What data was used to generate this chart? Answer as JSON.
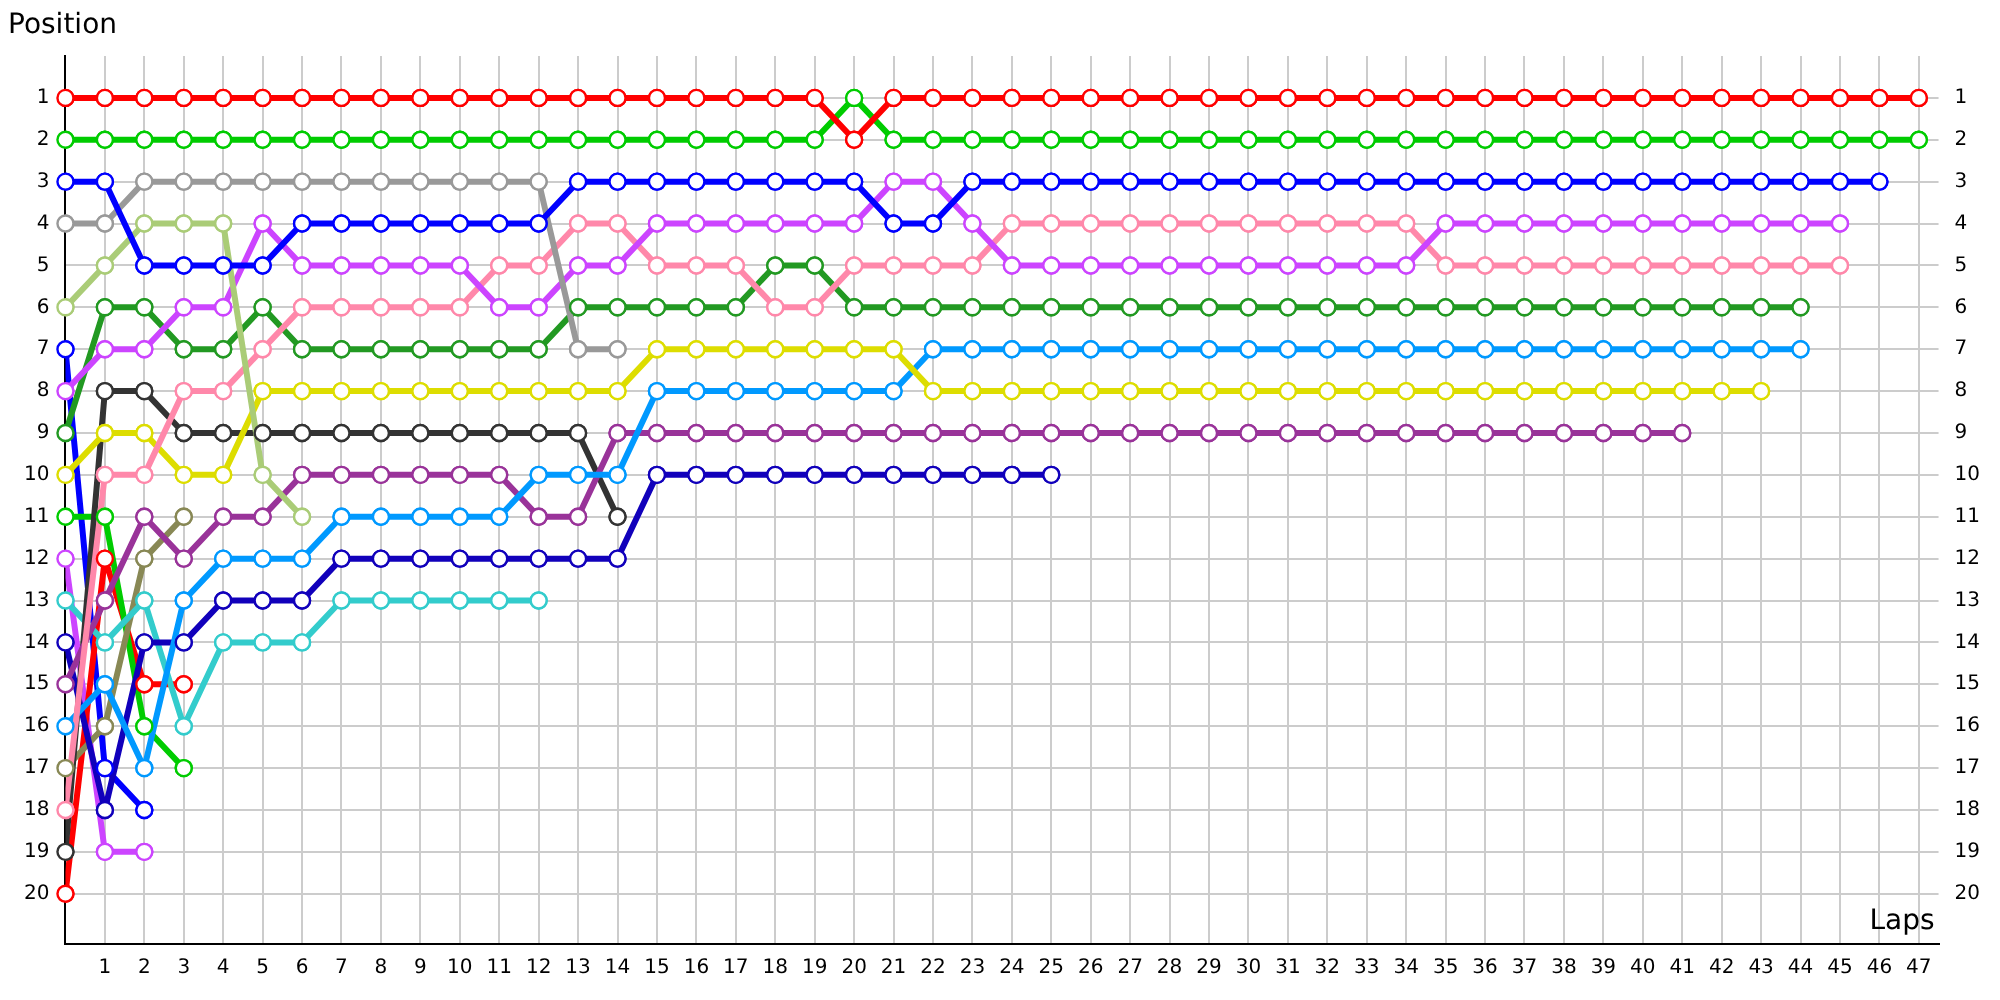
{
  "chart_data": {
    "type": "line",
    "xlabel": "Laps",
    "ylabel": "Position",
    "x": [
      0,
      1,
      2,
      3,
      4,
      5,
      6,
      7,
      8,
      9,
      10,
      11,
      12,
      13,
      14,
      15,
      16,
      17,
      18,
      19,
      20,
      21,
      22,
      23,
      24,
      25,
      26,
      27,
      28,
      29,
      30,
      31,
      32,
      33,
      34,
      35,
      36,
      37,
      38,
      39,
      40,
      41,
      42,
      43,
      44,
      45,
      46,
      47
    ],
    "xlim": [
      0,
      47.5
    ],
    "xticks": [
      1,
      2,
      3,
      4,
      5,
      6,
      7,
      8,
      9,
      10,
      11,
      12,
      13,
      14,
      15,
      16,
      17,
      18,
      19,
      20,
      21,
      22,
      23,
      24,
      25,
      26,
      27,
      28,
      29,
      30,
      31,
      32,
      33,
      34,
      35,
      36,
      37,
      38,
      39,
      40,
      41,
      42,
      43,
      44,
      45,
      46,
      47
    ],
    "ylim": [
      21.2,
      0
    ],
    "yticks": [
      1,
      2,
      3,
      4,
      5,
      6,
      7,
      8,
      9,
      10,
      11,
      12,
      13,
      14,
      15,
      16,
      17,
      18,
      19,
      20
    ],
    "y2lim": [
      21.2,
      0
    ],
    "y2ticks": [
      1,
      2,
      3,
      4,
      5,
      6,
      7,
      8,
      9,
      10,
      11,
      12,
      13,
      14,
      15,
      16,
      17,
      18,
      19,
      20
    ],
    "grid": true,
    "legend": false,
    "marker": "circle",
    "line_style": "solid",
    "series": [
      {
        "color": "#ff0000",
        "values": [
          1,
          1,
          1,
          1,
          1,
          1,
          1,
          1,
          1,
          1,
          1,
          1,
          1,
          1,
          1,
          1,
          1,
          1,
          1,
          1,
          2,
          1,
          1,
          1,
          1,
          1,
          1,
          1,
          1,
          1,
          1,
          1,
          1,
          1,
          1,
          1,
          1,
          1,
          1,
          1,
          1,
          1,
          1,
          1,
          1,
          1,
          1,
          1
        ]
      },
      {
        "color": "#00cc00",
        "values": [
          2,
          2,
          2,
          2,
          2,
          2,
          2,
          2,
          2,
          2,
          2,
          2,
          2,
          2,
          2,
          2,
          2,
          2,
          2,
          2,
          1,
          2,
          2,
          2,
          2,
          2,
          2,
          2,
          2,
          2,
          2,
          2,
          2,
          2,
          2,
          2,
          2,
          2,
          2,
          2,
          2,
          2,
          2,
          2,
          2,
          2,
          2,
          2
        ]
      },
      {
        "color": "#0000ff",
        "values": [
          3,
          3,
          5,
          5,
          5,
          5,
          4,
          4,
          4,
          4,
          4,
          4,
          4,
          3,
          3,
          3,
          3,
          3,
          3,
          3,
          3,
          4,
          4,
          3,
          3,
          3,
          3,
          3,
          3,
          3,
          3,
          3,
          3,
          3,
          3,
          3,
          3,
          3,
          3,
          3,
          3,
          3,
          3,
          3,
          3,
          3,
          3,
          null
        ]
      },
      {
        "color": "#999999",
        "values": [
          4,
          4,
          3,
          3,
          3,
          3,
          3,
          3,
          3,
          3,
          3,
          3,
          3,
          7,
          7,
          null,
          null,
          null,
          null,
          null,
          null,
          null,
          null,
          null,
          null,
          null,
          null,
          null,
          null,
          null,
          null,
          null,
          null,
          null,
          null,
          null,
          null,
          null,
          null,
          null,
          null,
          null,
          null,
          null,
          null,
          null,
          null,
          null
        ]
      },
      {
        "color": "#aacc77",
        "values": [
          6,
          5,
          4,
          4,
          4,
          10,
          11,
          null,
          null,
          null,
          null,
          null,
          null,
          null,
          null,
          null,
          null,
          null,
          null,
          null,
          null,
          null,
          null,
          null,
          null,
          null,
          null,
          null,
          null,
          null,
          null,
          null,
          null,
          null,
          null,
          null,
          null,
          null,
          null,
          null,
          null,
          null,
          null,
          null,
          null,
          null,
          null,
          null
        ]
      },
      {
        "color": "#cc44ff",
        "values": [
          8,
          7,
          7,
          6,
          6,
          4,
          5,
          5,
          5,
          5,
          5,
          6,
          6,
          5,
          5,
          4,
          4,
          4,
          4,
          4,
          4,
          3,
          3,
          4,
          5,
          5,
          5,
          5,
          5,
          5,
          5,
          5,
          5,
          5,
          5,
          4,
          4,
          4,
          4,
          4,
          4,
          4,
          4,
          4,
          4,
          4,
          null,
          null
        ]
      },
      {
        "color": "#ff88aa",
        "values": [
          18,
          10,
          10,
          8,
          8,
          7,
          6,
          6,
          6,
          6,
          6,
          5,
          5,
          4,
          4,
          5,
          5,
          5,
          6,
          6,
          5,
          5,
          5,
          5,
          4,
          4,
          4,
          4,
          4,
          4,
          4,
          4,
          4,
          4,
          4,
          5,
          5,
          5,
          5,
          5,
          5,
          5,
          5,
          5,
          5,
          5,
          null,
          null
        ]
      },
      {
        "color": "#229922",
        "values": [
          9,
          6,
          6,
          7,
          7,
          6,
          7,
          7,
          7,
          7,
          7,
          7,
          7,
          6,
          6,
          6,
          6,
          6,
          5,
          5,
          6,
          6,
          6,
          6,
          6,
          6,
          6,
          6,
          6,
          6,
          6,
          6,
          6,
          6,
          6,
          6,
          6,
          6,
          6,
          6,
          6,
          6,
          6,
          6,
          6,
          null,
          null,
          null
        ]
      },
      {
        "color": "#dddd00",
        "values": [
          10,
          9,
          9,
          10,
          10,
          8,
          8,
          8,
          8,
          8,
          8,
          8,
          8,
          8,
          8,
          7,
          7,
          7,
          7,
          7,
          7,
          7,
          8,
          8,
          8,
          8,
          8,
          8,
          8,
          8,
          8,
          8,
          8,
          8,
          8,
          8,
          8,
          8,
          8,
          8,
          8,
          8,
          8,
          8,
          null,
          null,
          null,
          null
        ]
      },
      {
        "color": "#0099ff",
        "values": [
          16,
          15,
          17,
          13,
          12,
          12,
          12,
          11,
          11,
          11,
          11,
          11,
          10,
          10,
          10,
          8,
          8,
          8,
          8,
          8,
          8,
          8,
          7,
          7,
          7,
          7,
          7,
          7,
          7,
          7,
          7,
          7,
          7,
          7,
          7,
          7,
          7,
          7,
          7,
          7,
          7,
          7,
          7,
          7,
          7,
          null,
          null,
          null
        ]
      },
      {
        "color": "#993399",
        "values": [
          15,
          13,
          11,
          12,
          11,
          11,
          10,
          10,
          10,
          10,
          10,
          10,
          11,
          11,
          9,
          9,
          9,
          9,
          9,
          9,
          9,
          9,
          9,
          9,
          9,
          9,
          9,
          9,
          9,
          9,
          9,
          9,
          9,
          9,
          9,
          9,
          9,
          9,
          9,
          9,
          9,
          9,
          null,
          null,
          null,
          null,
          null,
          null
        ]
      },
      {
        "color": "#333333",
        "values": [
          19,
          8,
          8,
          9,
          9,
          9,
          9,
          9,
          9,
          9,
          9,
          9,
          9,
          9,
          11,
          null,
          null,
          null,
          null,
          null,
          null,
          null,
          null,
          null,
          null,
          null,
          null,
          null,
          null,
          null,
          null,
          null,
          null,
          null,
          null,
          null,
          null,
          null,
          null,
          null,
          null,
          null,
          null,
          null,
          null,
          null,
          null,
          null
        ]
      },
      {
        "color": "#1100bb",
        "values": [
          14,
          18,
          14,
          14,
          13,
          13,
          13,
          12,
          12,
          12,
          12,
          12,
          12,
          12,
          12,
          10,
          10,
          10,
          10,
          10,
          10,
          10,
          10,
          10,
          10,
          10,
          null,
          null,
          null,
          null,
          null,
          null,
          null,
          null,
          null,
          null,
          null,
          null,
          null,
          null,
          null,
          null,
          null,
          null,
          null,
          null,
          null,
          null
        ]
      },
      {
        "color": "#33cccc",
        "values": [
          13,
          14,
          13,
          16,
          14,
          14,
          14,
          13,
          13,
          13,
          13,
          13,
          13,
          null,
          null,
          null,
          null,
          null,
          null,
          null,
          null,
          null,
          null,
          null,
          null,
          null,
          null,
          null,
          null,
          null,
          null,
          null,
          null,
          null,
          null,
          null,
          null,
          null,
          null,
          null,
          null,
          null,
          null,
          null,
          null,
          null,
          null,
          null
        ]
      },
      {
        "color": "#888855",
        "values": [
          17,
          16,
          12,
          11,
          null,
          null,
          null,
          null,
          null,
          null,
          null,
          null,
          null,
          null,
          null,
          null,
          null,
          null,
          null,
          null,
          null,
          null,
          null,
          null,
          null,
          null,
          null,
          null,
          null,
          null,
          null,
          null,
          null,
          null,
          null,
          null,
          null,
          null,
          null,
          null,
          null,
          null,
          null,
          null,
          null,
          null,
          null,
          null
        ]
      },
      {
        "color": "#00cc00",
        "values": [
          11,
          11,
          16,
          17,
          null,
          null,
          null,
          null,
          null,
          null,
          null,
          null,
          null,
          null,
          null,
          null,
          null,
          null,
          null,
          null,
          null,
          null,
          null,
          null,
          null,
          null,
          null,
          null,
          null,
          null,
          null,
          null,
          null,
          null,
          null,
          null,
          null,
          null,
          null,
          null,
          null,
          null,
          null,
          null,
          null,
          null,
          null,
          null
        ]
      },
      {
        "color": "#ff0000",
        "values": [
          20,
          12,
          15,
          15,
          null,
          null,
          null,
          null,
          null,
          null,
          null,
          null,
          null,
          null,
          null,
          null,
          null,
          null,
          null,
          null,
          null,
          null,
          null,
          null,
          null,
          null,
          null,
          null,
          null,
          null,
          null,
          null,
          null,
          null,
          null,
          null,
          null,
          null,
          null,
          null,
          null,
          null,
          null,
          null,
          null,
          null,
          null,
          null
        ]
      },
      {
        "color": "#0000ff",
        "values": [
          7,
          17,
          18,
          null,
          null,
          null,
          null,
          null,
          null,
          null,
          null,
          null,
          null,
          null,
          null,
          null,
          null,
          null,
          null,
          null,
          null,
          null,
          null,
          null,
          null,
          null,
          null,
          null,
          null,
          null,
          null,
          null,
          null,
          null,
          null,
          null,
          null,
          null,
          null,
          null,
          null,
          null,
          null,
          null,
          null,
          null,
          null,
          null
        ]
      },
      {
        "color": "#cc44ff",
        "values": [
          12,
          19,
          19,
          null,
          null,
          null,
          null,
          null,
          null,
          null,
          null,
          null,
          null,
          null,
          null,
          null,
          null,
          null,
          null,
          null,
          null,
          null,
          null,
          null,
          null,
          null,
          null,
          null,
          null,
          null,
          null,
          null,
          null,
          null,
          null,
          null,
          null,
          null,
          null,
          null,
          null,
          null,
          null,
          null,
          null,
          null,
          null,
          null
        ]
      }
    ]
  }
}
